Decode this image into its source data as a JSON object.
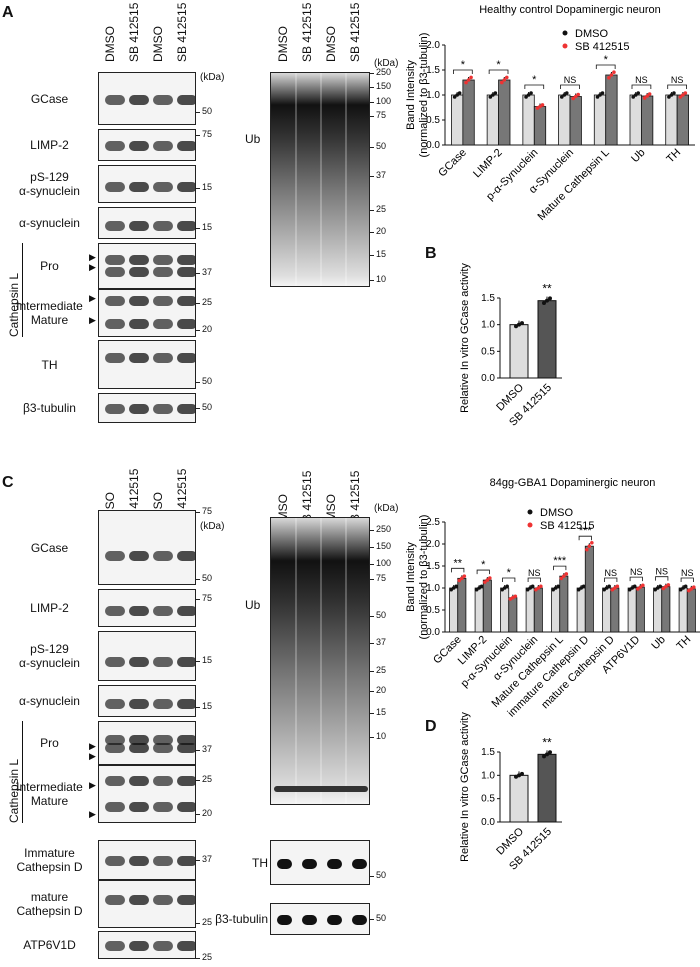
{
  "panels": {
    "A": "A",
    "B": "B",
    "C": "C",
    "D": "D"
  },
  "lanes": [
    "DMSO",
    "SB 412515",
    "DMSO",
    "SB 412515"
  ],
  "kda": "(kDa)",
  "panelA": {
    "blots": [
      {
        "label": "GCase",
        "markers": [
          {
            "t": "50",
            "y": 0.75
          }
        ]
      },
      {
        "label": "LIMP-2",
        "markers": [
          {
            "t": "75",
            "y": 0.2
          }
        ]
      },
      {
        "label": "pS-129\nα-synuclein",
        "markers": [
          {
            "t": "15",
            "y": 0.6
          }
        ]
      },
      {
        "label": "α-synuclein",
        "markers": [
          {
            "t": "15",
            "y": 0.65
          }
        ]
      },
      {
        "label": "Pro",
        "markers": [
          {
            "t": "37",
            "y": 0.65
          }
        ]
      },
      {
        "label": "Intermediate\nMature",
        "markers": [
          {
            "t": "25",
            "y": 0.3
          },
          {
            "t": "20",
            "y": 0.85
          }
        ]
      },
      {
        "label": "TH",
        "markers": [
          {
            "t": "50",
            "y": 0.85
          }
        ]
      },
      {
        "label": "β3-tubulin",
        "markers": [
          {
            "t": "50",
            "y": 0.5
          }
        ]
      }
    ],
    "cathepsin": "Cathepsin L",
    "ub": {
      "label": "Ub",
      "markers": [
        "250",
        "150",
        "100",
        "75",
        "50",
        "37",
        "25",
        "20",
        "15",
        "10"
      ]
    }
  },
  "panelC": {
    "blots": [
      {
        "label": "GCase",
        "markers": [
          {
            "t": "75",
            "y": 0.02
          },
          {
            "t": "50",
            "y": 0.92
          }
        ]
      },
      {
        "label": "LIMP-2",
        "markers": [
          {
            "t": "75",
            "y": 0.25
          }
        ]
      },
      {
        "label": "pS-129\nα-synuclein",
        "markers": [
          {
            "t": "15",
            "y": 0.6
          }
        ]
      },
      {
        "label": "α-synuclein",
        "markers": [
          {
            "t": "15",
            "y": 0.7
          }
        ]
      },
      {
        "label": "Pro",
        "markers": [
          {
            "t": "37",
            "y": 0.65
          }
        ]
      },
      {
        "label": "Intermediate\nMature",
        "markers": [
          {
            "t": "25",
            "y": 0.25
          },
          {
            "t": "20",
            "y": 0.85
          }
        ]
      },
      {
        "label": "Immature\nCathepsin D",
        "markers": [
          {
            "t": "37",
            "y": 0.5
          }
        ]
      },
      {
        "label": "mature\nCathepsin D",
        "markers": [
          {
            "t": "25",
            "y": 0.9
          }
        ]
      },
      {
        "label": "ATP6V1D",
        "markers": [
          {
            "t": "25",
            "y": 0.95
          }
        ]
      }
    ],
    "cathepsin": "Cathepsin L",
    "ub": {
      "label": "Ub",
      "markers": [
        "250",
        "150",
        "100",
        "75",
        "50",
        "37",
        "25",
        "20",
        "15",
        "10"
      ]
    },
    "th": {
      "label": "TH",
      "marker": "50"
    },
    "tub": {
      "label": "β3-tubulin",
      "marker": "50"
    }
  },
  "chart_data": [
    {
      "type": "bar",
      "title": "Healthy control Dopaminergic neuron",
      "ylabel": "Band Intensity\n(normalized to β3-tubulin)",
      "ylim": [
        0,
        2.0
      ],
      "yticks": [
        "0.0",
        "0.5",
        "1.0",
        "1.5",
        "2.0"
      ],
      "categories": [
        "GCase",
        "LIMP-2",
        "p-α-Synuclein",
        "α-Synuclein",
        "Mature Cathepsin L",
        "Ub",
        "TH"
      ],
      "series": [
        {
          "name": "DMSO",
          "values": [
            1.0,
            1.0,
            1.0,
            1.0,
            1.0,
            1.0,
            1.0
          ]
        },
        {
          "name": "SB 412515",
          "values": [
            1.3,
            1.3,
            0.77,
            0.97,
            1.4,
            0.98,
            1.0
          ]
        }
      ],
      "significance": [
        "*",
        "*",
        "*",
        "NS",
        "*",
        "NS",
        "NS"
      ]
    },
    {
      "type": "bar",
      "ylabel": "Relative In vitro GCase activity",
      "ylim": [
        0,
        1.5
      ],
      "yticks": [
        "0.0",
        "0.5",
        "1.0",
        "1.5"
      ],
      "categories": [
        "DMSO",
        "SB 412515"
      ],
      "values": [
        1.0,
        1.45
      ],
      "significance": "**"
    },
    {
      "type": "bar",
      "title": "84gg-GBA1 Dopaminergic neuron",
      "ylabel": "Band Intensity\n(normalized to β3-tubulin)",
      "ylim": [
        0,
        2.5
      ],
      "yticks": [
        "0.0",
        "0.5",
        "1.0",
        "1.5",
        "2.0",
        "2.5"
      ],
      "categories": [
        "GCase",
        "LIMP-2",
        "p-α-Synuclein",
        "α-Synuclein",
        "Mature Cathepsin L",
        "immature Cathepsin D",
        "mature Cathepsin D",
        "ATP6V1D",
        "Ub",
        "TH"
      ],
      "series": [
        {
          "name": "DMSO",
          "values": [
            1.0,
            1.0,
            1.0,
            1.0,
            1.0,
            1.0,
            1.0,
            1.0,
            1.0,
            1.0
          ]
        },
        {
          "name": "SB 412515",
          "values": [
            1.22,
            1.18,
            0.78,
            1.0,
            1.27,
            1.95,
            1.0,
            1.02,
            1.03,
            0.98
          ]
        }
      ],
      "significance": [
        "**",
        "*",
        "*",
        "NS",
        "***",
        "***",
        "NS",
        "NS",
        "NS",
        "NS"
      ]
    },
    {
      "type": "bar",
      "ylabel": "Relative In vitro GCase activity",
      "ylim": [
        0,
        1.5
      ],
      "yticks": [
        "0.0",
        "0.5",
        "1.0",
        "1.5"
      ],
      "categories": [
        "DMSO",
        "SB 412515"
      ],
      "values": [
        1.0,
        1.45
      ],
      "significance": "**"
    }
  ]
}
